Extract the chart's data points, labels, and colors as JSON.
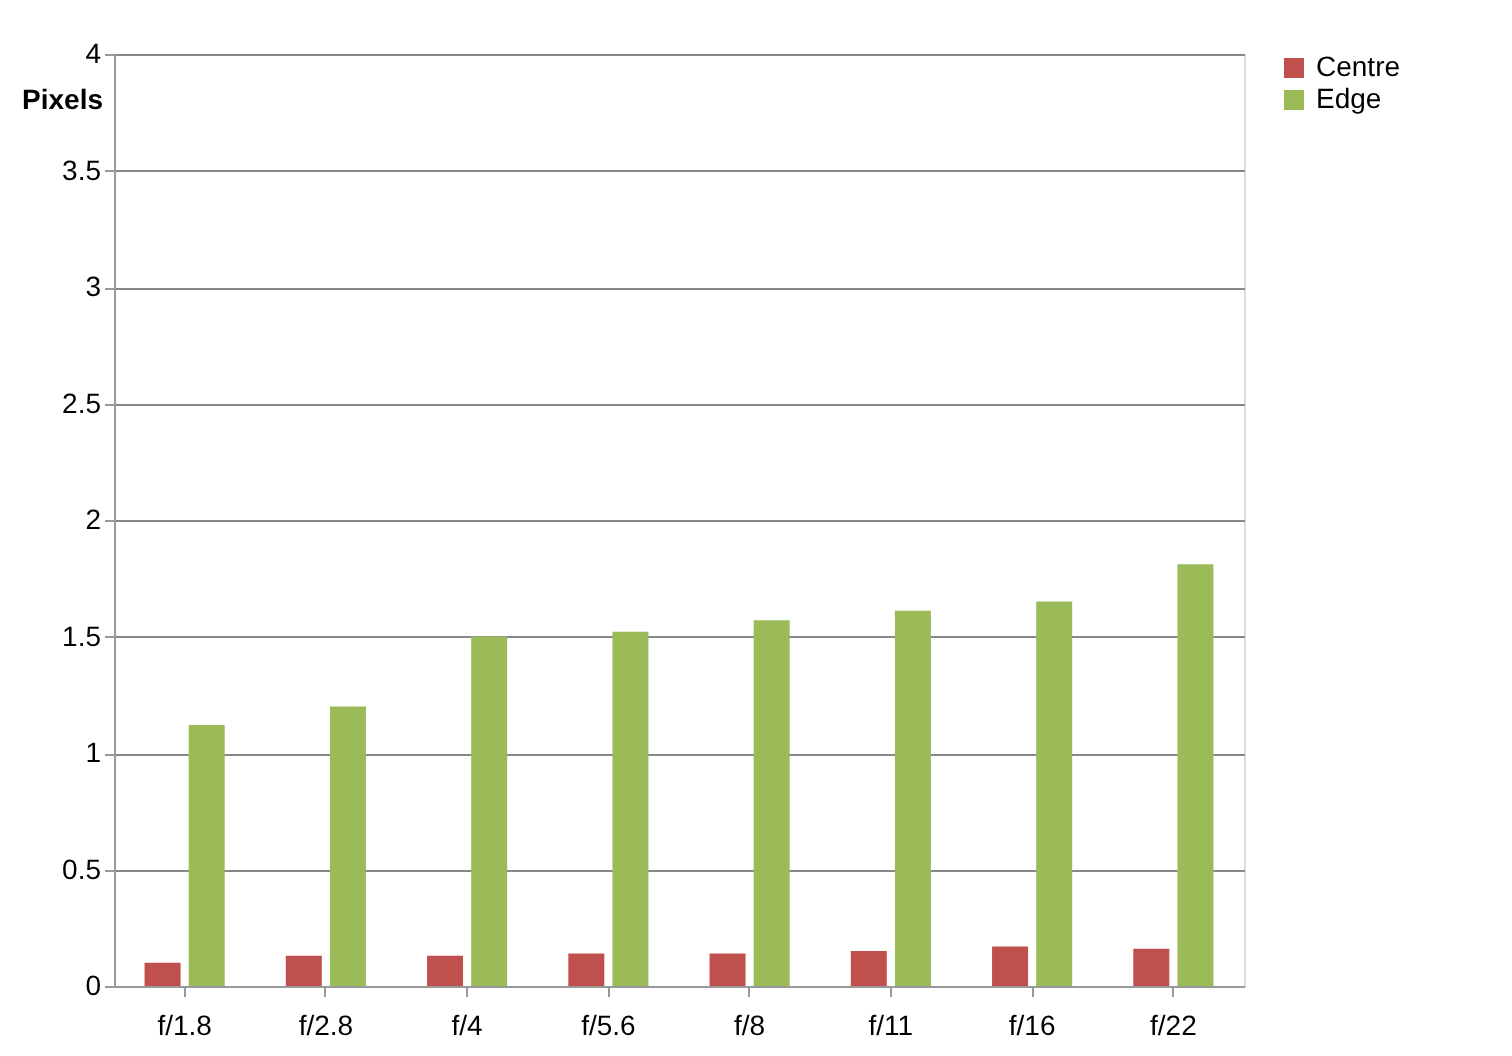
{
  "chart_data": {
    "type": "bar",
    "ylabel": "Pixels",
    "categories": [
      "f/1.8",
      "f/2.8",
      "f/4",
      "f/5.6",
      "f/8",
      "f/11",
      "f/16",
      "f/22"
    ],
    "series": [
      {
        "name": "Centre",
        "color": "#c0504d",
        "values": [
          0.1,
          0.13,
          0.13,
          0.14,
          0.14,
          0.15,
          0.17,
          0.16
        ]
      },
      {
        "name": "Edge",
        "color": "#9bbb59",
        "values": [
          1.12,
          1.2,
          1.5,
          1.52,
          1.57,
          1.61,
          1.65,
          1.81
        ]
      }
    ],
    "ylim": [
      0,
      4
    ],
    "yticks": [
      0,
      0.5,
      1,
      1.5,
      2,
      2.5,
      3,
      3.5,
      4
    ],
    "grid": "y",
    "legend": "right"
  }
}
